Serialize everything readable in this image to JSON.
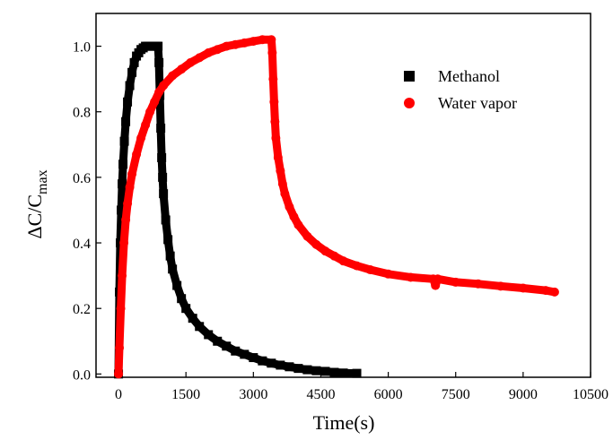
{
  "chart_data": {
    "type": "scatter",
    "title": "",
    "xlabel": "Time(s)",
    "ylabel_main": "ΔC/C",
    "ylabel_sub": "max",
    "xlim": [
      -500,
      10500
    ],
    "ylim": [
      -0.01,
      1.1
    ],
    "x_ticks": [
      0,
      1500,
      3000,
      4500,
      6000,
      7500,
      9000,
      10500
    ],
    "x_tick_labels": [
      "0",
      "1500",
      "3000",
      "4500",
      "6000",
      "7500",
      "9000",
      "10500"
    ],
    "y_ticks": [
      0.0,
      0.2,
      0.4,
      0.6,
      0.8,
      1.0
    ],
    "y_tick_labels": [
      "0.0",
      "0.2",
      "0.4",
      "0.6",
      "0.8",
      "1.0"
    ],
    "grid": false,
    "legend_position": "top-right",
    "series": [
      {
        "name": "Methanol",
        "marker": "square",
        "color": "#000000",
        "x": [
          0,
          20,
          40,
          60,
          80,
          100,
          130,
          160,
          200,
          250,
          300,
          350,
          400,
          450,
          500,
          550,
          600,
          650,
          700,
          750,
          800,
          850,
          880,
          900,
          920,
          940,
          960,
          980,
          1000,
          1050,
          1100,
          1150,
          1200,
          1300,
          1400,
          1500,
          1650,
          1800,
          2000,
          2200,
          2400,
          2600,
          2800,
          3000,
          3200,
          3400,
          3600,
          3800,
          4000,
          4200,
          4400,
          4600,
          4800,
          5000,
          5300
        ],
        "y": [
          0.0,
          0.25,
          0.4,
          0.5,
          0.58,
          0.64,
          0.71,
          0.77,
          0.83,
          0.88,
          0.92,
          0.95,
          0.97,
          0.98,
          0.99,
          0.995,
          1.0,
          1.0,
          1.0,
          1.0,
          1.0,
          1.0,
          1.0,
          0.95,
          0.85,
          0.75,
          0.66,
          0.6,
          0.55,
          0.47,
          0.41,
          0.36,
          0.32,
          0.27,
          0.23,
          0.2,
          0.17,
          0.145,
          0.12,
          0.1,
          0.085,
          0.07,
          0.06,
          0.05,
          0.04,
          0.033,
          0.027,
          0.022,
          0.017,
          0.013,
          0.01,
          0.008,
          0.005,
          0.003,
          0.002
        ]
      },
      {
        "name": "Water vapor",
        "marker": "circle",
        "color": "#ff0000",
        "x": [
          0,
          20,
          50,
          80,
          120,
          160,
          200,
          250,
          300,
          400,
          500,
          600,
          700,
          800,
          900,
          1000,
          1200,
          1400,
          1600,
          1800,
          2000,
          2200,
          2400,
          2600,
          2800,
          3000,
          3200,
          3400,
          3420,
          3440,
          3460,
          3480,
          3500,
          3550,
          3600,
          3650,
          3700,
          3800,
          3900,
          4000,
          4200,
          4400,
          4600,
          4800,
          5000,
          5300,
          5600,
          6000,
          6500,
          7000,
          7050,
          7100,
          7500,
          8000,
          8500,
          9000,
          9500,
          9700
        ],
        "y": [
          0.0,
          0.08,
          0.2,
          0.3,
          0.4,
          0.47,
          0.52,
          0.57,
          0.61,
          0.67,
          0.72,
          0.76,
          0.8,
          0.83,
          0.86,
          0.88,
          0.91,
          0.93,
          0.95,
          0.965,
          0.98,
          0.99,
          1.0,
          1.005,
          1.01,
          1.015,
          1.02,
          1.02,
          0.98,
          0.9,
          0.83,
          0.77,
          0.72,
          0.66,
          0.62,
          0.58,
          0.55,
          0.51,
          0.48,
          0.455,
          0.42,
          0.395,
          0.375,
          0.36,
          0.345,
          0.33,
          0.318,
          0.305,
          0.295,
          0.29,
          0.27,
          0.29,
          0.28,
          0.275,
          0.268,
          0.262,
          0.255,
          0.25
        ]
      }
    ]
  }
}
